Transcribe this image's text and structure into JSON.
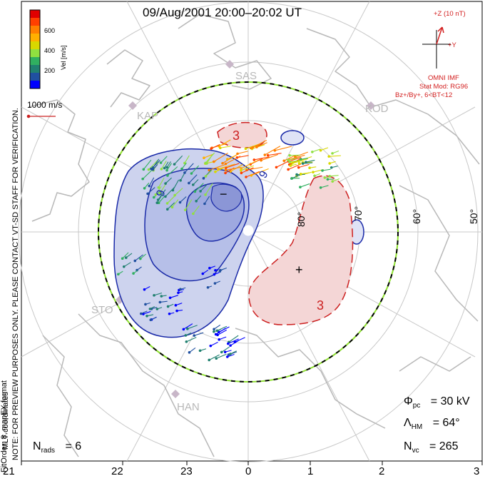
{
  "title": "09/Aug/2001 20:00–20:02 UT",
  "side_texts": {
    "mlt_coordinates": "MLT coordinates",
    "note": "NOTE: FOR PREVIEW PURPOSES ONLY. PLEASE CONTACT VT-SD STAFF FOR VERIFICATION.",
    "fit_order": "FitOrder: 8, mapEX format"
  },
  "velocity_scale": {
    "axis_label": "Vel [m/s]",
    "ticks": [
      "600",
      "400",
      "200"
    ],
    "reference_label": "1000 m/s",
    "colors": [
      "#e00000",
      "#ff4000",
      "#ff8000",
      "#ffb000",
      "#d8d800",
      "#90e040",
      "#30b060",
      "#208070",
      "#2050a0",
      "#0000ff"
    ]
  },
  "imf": {
    "z_label": "+Z (10 nT)",
    "y_label": "+Y",
    "source": "OMNI IMF",
    "model": "Stat Mod: RG96",
    "condition": "Bz+/By+, 6<BT<12"
  },
  "stations": [
    "SAS",
    "KAP",
    "KOD",
    "STO",
    "HAN"
  ],
  "latitude_labels": [
    "80°",
    "70°",
    "60°",
    "50°"
  ],
  "contour_labels": {
    "negative": [
      "9",
      "9",
      "−"
    ],
    "positive": [
      "3",
      "3",
      "+"
    ]
  },
  "stats": {
    "phi_pc": {
      "symbol": "Φ",
      "sub": "pc",
      "value": "= 30 kV"
    },
    "lambda_hm": {
      "symbol": "Λ",
      "sub": "HM",
      "value": "= 64°"
    },
    "n_vc": {
      "symbol": "N",
      "sub": "vc",
      "value": "= 265"
    },
    "n_rads": {
      "symbol": "N",
      "sub": "rads",
      "value": "= 6"
    }
  },
  "mlt_ticks": [
    "21",
    "22",
    "23",
    "0",
    "1",
    "2",
    "3"
  ],
  "colors": {
    "negative_fill": "#cdd3ee",
    "negative_line": "#1a2aa8",
    "positive_fill": "#f4d6d6",
    "positive_line": "#cc2020",
    "map_line": "#b8b8b8",
    "grid": "#c8c8c8",
    "boundary_dash_a": "#000000",
    "boundary_dash_b": "#8ee030"
  }
}
